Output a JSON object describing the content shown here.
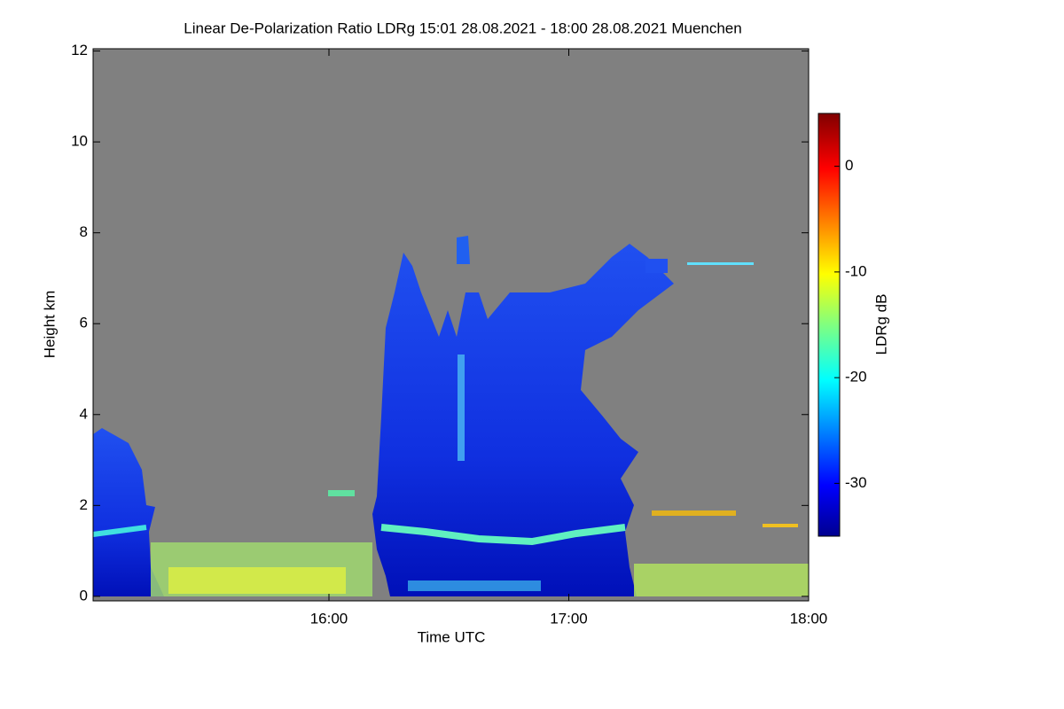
{
  "chart_data": {
    "type": "heatmap",
    "title": "Linear De-Polarization Ratio LDRg   15:01 28.08.2021 - 18:00 28.08.2021 Muenchen",
    "x_label": "Time UTC",
    "y_label": "Height km",
    "colorbar_label": "LDRg dB",
    "xlim": [
      901,
      1080
    ],
    "xticks": [
      {
        "value": 960,
        "label": "16:00"
      },
      {
        "value": 1020,
        "label": "17:00"
      },
      {
        "value": 1080,
        "label": "18:00"
      }
    ],
    "ylim": [
      -0.1,
      12.05
    ],
    "yticks": [
      0,
      2,
      4,
      6,
      8,
      10,
      12
    ],
    "clim": [
      -35,
      5
    ],
    "cticks": [
      0,
      -10,
      -20,
      -30
    ],
    "colormap": "jet",
    "background": "#808080"
  }
}
